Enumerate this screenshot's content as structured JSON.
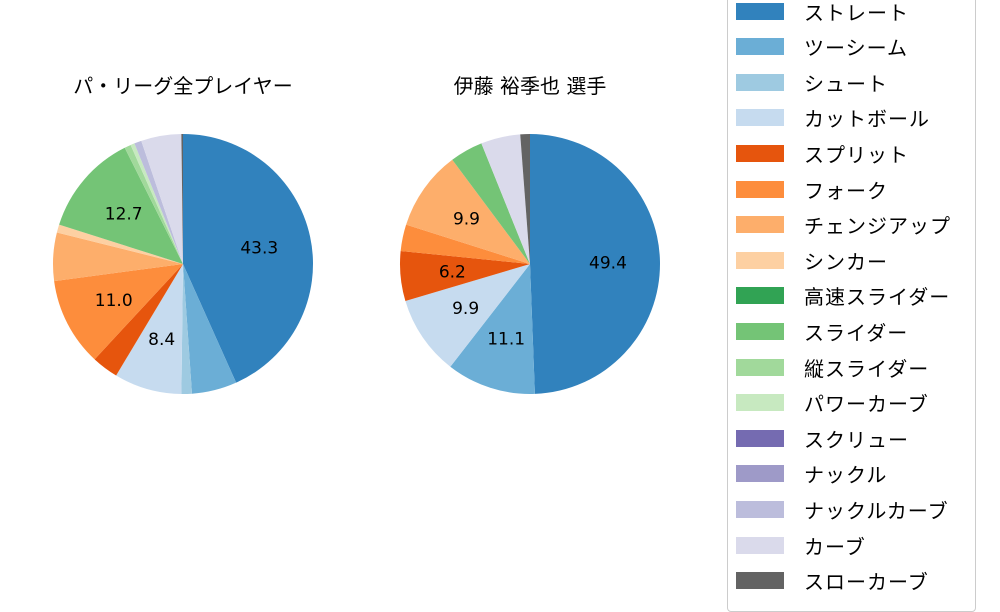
{
  "chart_data": [
    {
      "type": "pie",
      "title": "パ・リーグ全プレイヤー",
      "categories": [
        "ストレート",
        "ツーシーム",
        "シュート",
        "カットボール",
        "スプリット",
        "フォーク",
        "チェンジアップ",
        "シンカー",
        "高速スライダー",
        "スライダー",
        "縦スライダー",
        "パワーカーブ",
        "スクリュー",
        "ナックル",
        "ナックルカーブ",
        "カーブ",
        "スローカーブ"
      ],
      "values": [
        43.3,
        5.6,
        1.3,
        8.4,
        3.3,
        11.0,
        6.0,
        1.0,
        0,
        12.7,
        0.8,
        0.5,
        0,
        0,
        0.9,
        5.0,
        0.2
      ],
      "labels_shown": {
        "ストレート": "43.3",
        "カットボール": "8.4",
        "フォーク": "11.0",
        "スライダー": "12.7"
      },
      "startangle": 90,
      "direction": "clockwise"
    },
    {
      "type": "pie",
      "title": "伊藤 裕季也  選手",
      "categories": [
        "ストレート",
        "ツーシーム",
        "シュート",
        "カットボール",
        "スプリット",
        "フォーク",
        "チェンジアップ",
        "シンカー",
        "高速スライダー",
        "スライダー",
        "縦スライダー",
        "パワーカーブ",
        "スクリュー",
        "ナックル",
        "ナックルカーブ",
        "カーブ",
        "スローカーブ"
      ],
      "values": [
        49.4,
        11.1,
        0,
        9.9,
        6.2,
        3.3,
        9.9,
        0,
        0,
        4.1,
        0,
        0,
        0,
        0,
        0,
        4.9,
        1.2
      ],
      "labels_shown": {
        "ストレート": "49.4",
        "ツーシーム": "11.1",
        "カットボール": "9.9",
        "スプリット": "6.2",
        "チェンジアップ": "9.9"
      },
      "startangle": 90,
      "direction": "clockwise"
    }
  ],
  "titles": {
    "left": "パ・リーグ全プレイヤー",
    "right": "伊藤 裕季也  選手"
  },
  "legend": {
    "items": [
      {
        "label": "ストレート",
        "color": "#3182bd"
      },
      {
        "label": "ツーシーム",
        "color": "#6baed6"
      },
      {
        "label": "シュート",
        "color": "#9ecae1"
      },
      {
        "label": "カットボール",
        "color": "#c6dbef"
      },
      {
        "label": "スプリット",
        "color": "#e6550d"
      },
      {
        "label": "フォーク",
        "color": "#fd8d3c"
      },
      {
        "label": "チェンジアップ",
        "color": "#fdae6b"
      },
      {
        "label": "シンカー",
        "color": "#fdd0a2"
      },
      {
        "label": "高速スライダー",
        "color": "#31a354"
      },
      {
        "label": "スライダー",
        "color": "#74c476"
      },
      {
        "label": "縦スライダー",
        "color": "#a1d99b"
      },
      {
        "label": "パワーカーブ",
        "color": "#c7e9c0"
      },
      {
        "label": "スクリュー",
        "color": "#756bb1"
      },
      {
        "label": "ナックル",
        "color": "#9e9ac8"
      },
      {
        "label": "ナックルカーブ",
        "color": "#bcbddc"
      },
      {
        "label": "カーブ",
        "color": "#dadaeb"
      },
      {
        "label": "スローカーブ",
        "color": "#636363"
      }
    ]
  }
}
